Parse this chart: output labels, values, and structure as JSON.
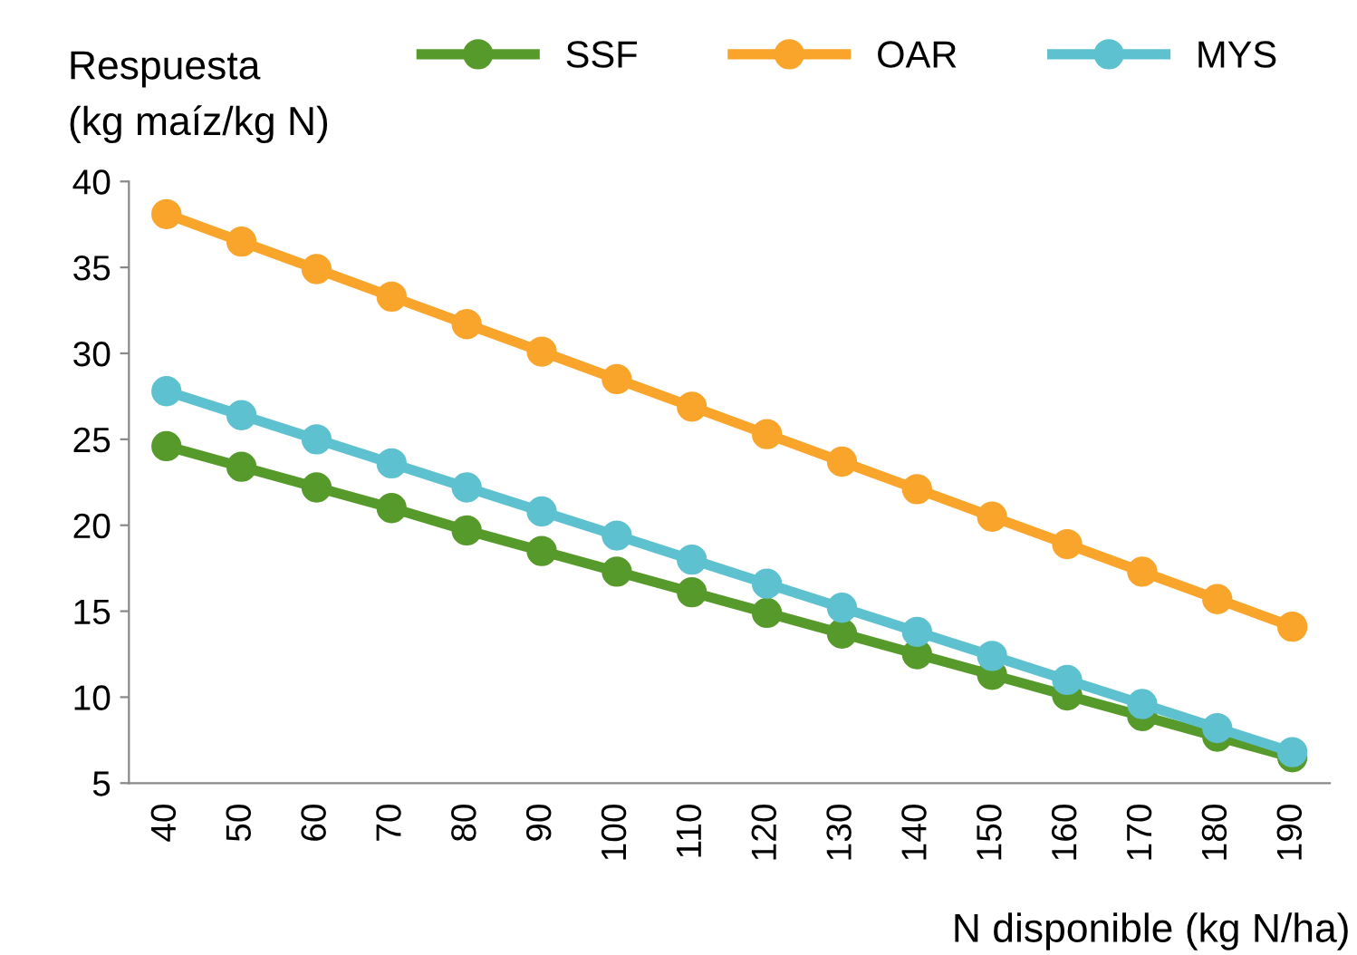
{
  "chart_data": {
    "type": "line",
    "ylabel": "Respuesta\n(kg maíz/kg N)",
    "xlabel": "N disponible (kg N/ha)",
    "categories": [
      "40",
      "50",
      "60",
      "70",
      "80",
      "90",
      "100",
      "110",
      "120",
      "130",
      "140",
      "150",
      "160",
      "170",
      "180",
      "190"
    ],
    "series": [
      {
        "name": "SSF",
        "color": "#579a2c",
        "values": [
          24.6,
          23.4,
          22.2,
          21.0,
          19.7,
          18.5,
          17.3,
          16.1,
          14.9,
          13.7,
          12.5,
          11.3,
          10.1,
          8.9,
          7.7,
          6.5
        ]
      },
      {
        "name": "OAR",
        "color": "#f9a52c",
        "values": [
          38.1,
          36.5,
          34.9,
          33.3,
          31.7,
          30.1,
          28.5,
          26.9,
          25.3,
          23.7,
          22.1,
          20.5,
          18.9,
          17.3,
          15.7,
          14.1
        ]
      },
      {
        "name": "MYS",
        "color": "#5ec1cf",
        "values": [
          27.8,
          26.4,
          25.0,
          23.6,
          22.2,
          20.8,
          19.4,
          18.0,
          16.6,
          15.2,
          13.8,
          12.4,
          11.0,
          9.6,
          8.2,
          6.8
        ]
      }
    ],
    "ylim": [
      5,
      40
    ],
    "yticks": [
      5,
      10,
      15,
      20,
      25,
      30,
      35,
      40
    ],
    "grid": false,
    "legend": "top",
    "marker": "circle",
    "line_style": "solid"
  }
}
